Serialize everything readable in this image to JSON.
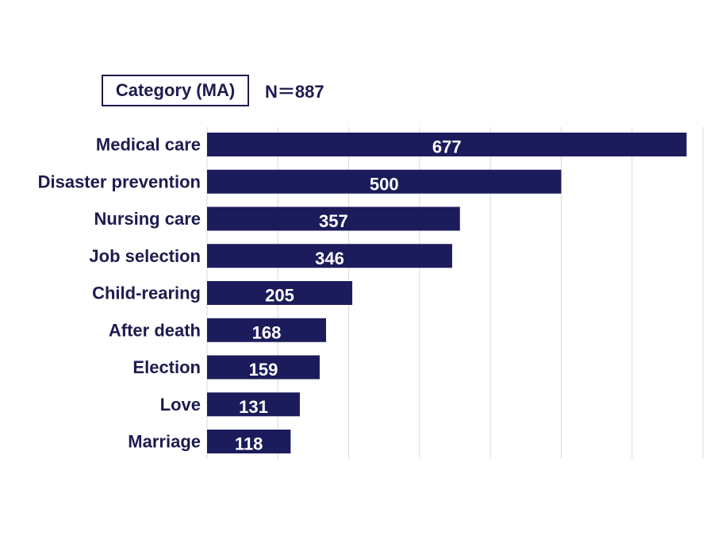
{
  "header": {
    "category_label": "Category (MA)",
    "n_label": "N＝887"
  },
  "colors": {
    "bar": "#1c1c5c",
    "text": "#1c1c4f",
    "grid": "#d9d9d9",
    "value_text": "#ffffff"
  },
  "chart_data": {
    "type": "bar",
    "orientation": "horizontal",
    "title": "",
    "xlabel": "",
    "ylabel": "",
    "categories": [
      "Medical care",
      "Disaster prevention",
      "Nursing care",
      "Job selection",
      "Child-rearing",
      "After death",
      "Election",
      "Love",
      "Marriage"
    ],
    "values": [
      677,
      500,
      357,
      346,
      205,
      168,
      159,
      131,
      118
    ],
    "xlim": [
      0,
      700
    ],
    "grid": "vertical",
    "data_labels": true,
    "legend": "none"
  }
}
